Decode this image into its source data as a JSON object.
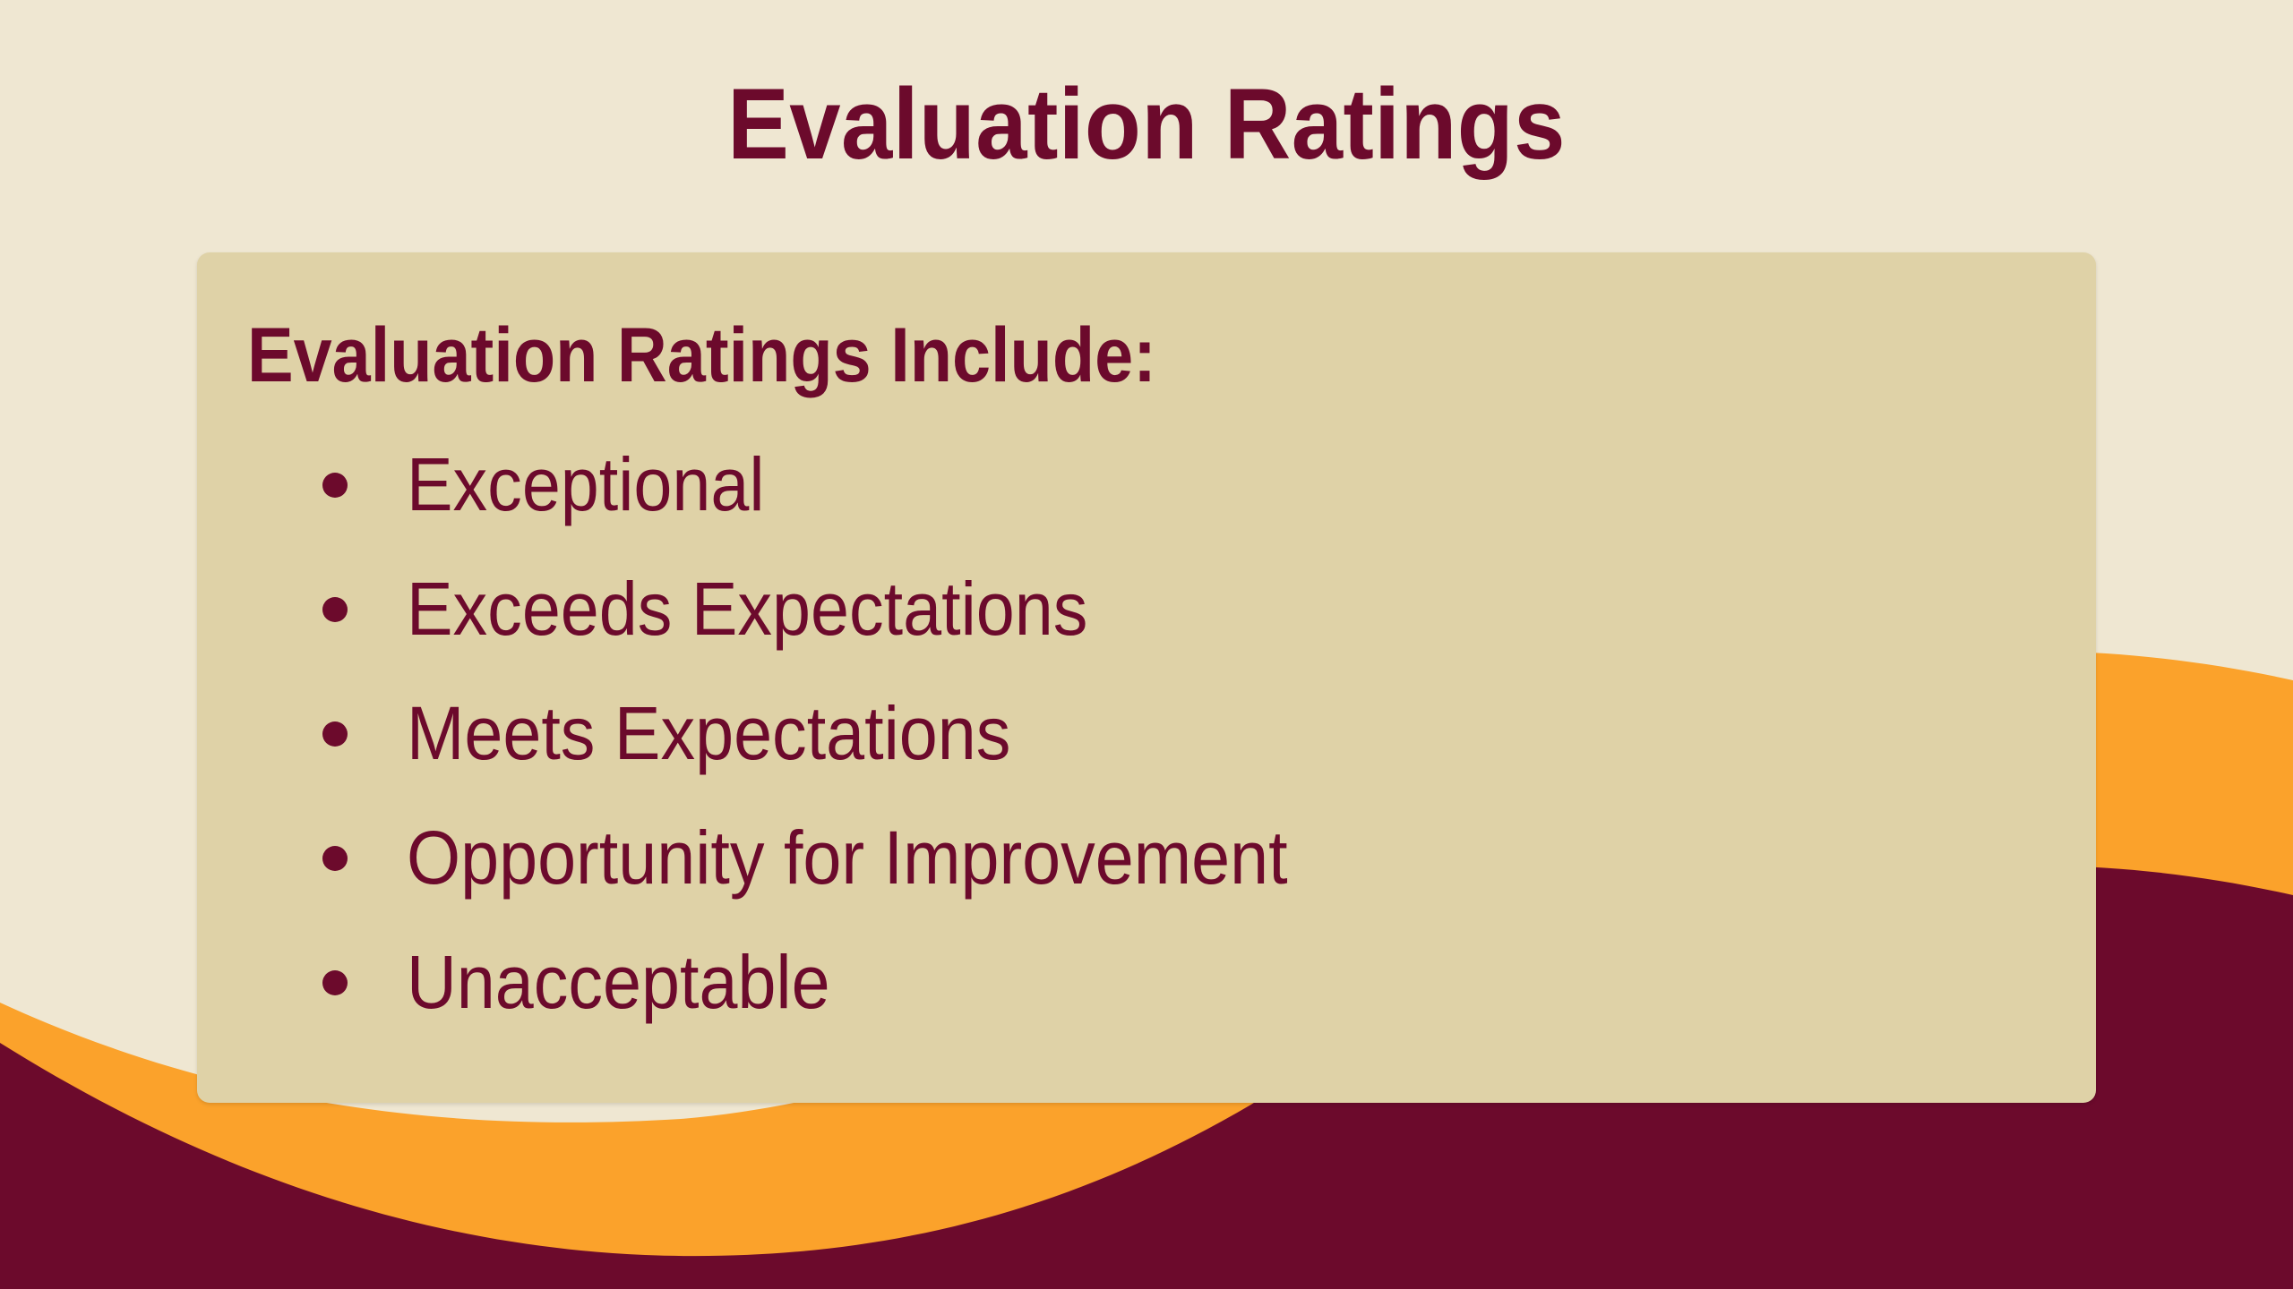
{
  "slide": {
    "title": "Evaluation Ratings",
    "box_heading": "Evaluation Ratings Include:",
    "ratings": [
      {
        "label": "Exceptional"
      },
      {
        "label": "Exceeds Expectations"
      },
      {
        "label": "Meets Expectations"
      },
      {
        "label": "Opportunity for Improvement"
      },
      {
        "label": "Unacceptable"
      }
    ]
  },
  "colors": {
    "background": "#efe7d2",
    "box": "#dfd2a7",
    "maroon": "#6c0a2c",
    "orange": "#fba22b"
  },
  "icons": {
    "bullet": "bullet-dot-icon"
  }
}
